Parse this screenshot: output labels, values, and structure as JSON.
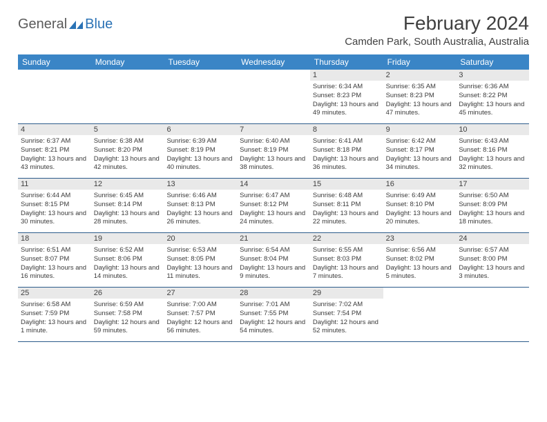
{
  "header": {
    "logo_general": "General",
    "logo_blue": "Blue",
    "month_title": "February 2024",
    "location": "Camden Park, South Australia, Australia"
  },
  "colors": {
    "header_bg": "#3a85c6",
    "header_text": "#ffffff",
    "daynum_bg": "#e9e9e9",
    "row_border": "#2a5a8a",
    "text": "#404040",
    "logo_gray": "#5a5a5a",
    "logo_blue": "#2a72b5"
  },
  "day_labels": [
    "Sunday",
    "Monday",
    "Tuesday",
    "Wednesday",
    "Thursday",
    "Friday",
    "Saturday"
  ],
  "weeks": [
    [
      {
        "n": "",
        "sr": "",
        "ss": "",
        "dl": ""
      },
      {
        "n": "",
        "sr": "",
        "ss": "",
        "dl": ""
      },
      {
        "n": "",
        "sr": "",
        "ss": "",
        "dl": ""
      },
      {
        "n": "",
        "sr": "",
        "ss": "",
        "dl": ""
      },
      {
        "n": "1",
        "sr": "Sunrise: 6:34 AM",
        "ss": "Sunset: 8:23 PM",
        "dl": "Daylight: 13 hours and 49 minutes."
      },
      {
        "n": "2",
        "sr": "Sunrise: 6:35 AM",
        "ss": "Sunset: 8:23 PM",
        "dl": "Daylight: 13 hours and 47 minutes."
      },
      {
        "n": "3",
        "sr": "Sunrise: 6:36 AM",
        "ss": "Sunset: 8:22 PM",
        "dl": "Daylight: 13 hours and 45 minutes."
      }
    ],
    [
      {
        "n": "4",
        "sr": "Sunrise: 6:37 AM",
        "ss": "Sunset: 8:21 PM",
        "dl": "Daylight: 13 hours and 43 minutes."
      },
      {
        "n": "5",
        "sr": "Sunrise: 6:38 AM",
        "ss": "Sunset: 8:20 PM",
        "dl": "Daylight: 13 hours and 42 minutes."
      },
      {
        "n": "6",
        "sr": "Sunrise: 6:39 AM",
        "ss": "Sunset: 8:19 PM",
        "dl": "Daylight: 13 hours and 40 minutes."
      },
      {
        "n": "7",
        "sr": "Sunrise: 6:40 AM",
        "ss": "Sunset: 8:19 PM",
        "dl": "Daylight: 13 hours and 38 minutes."
      },
      {
        "n": "8",
        "sr": "Sunrise: 6:41 AM",
        "ss": "Sunset: 8:18 PM",
        "dl": "Daylight: 13 hours and 36 minutes."
      },
      {
        "n": "9",
        "sr": "Sunrise: 6:42 AM",
        "ss": "Sunset: 8:17 PM",
        "dl": "Daylight: 13 hours and 34 minutes."
      },
      {
        "n": "10",
        "sr": "Sunrise: 6:43 AM",
        "ss": "Sunset: 8:16 PM",
        "dl": "Daylight: 13 hours and 32 minutes."
      }
    ],
    [
      {
        "n": "11",
        "sr": "Sunrise: 6:44 AM",
        "ss": "Sunset: 8:15 PM",
        "dl": "Daylight: 13 hours and 30 minutes."
      },
      {
        "n": "12",
        "sr": "Sunrise: 6:45 AM",
        "ss": "Sunset: 8:14 PM",
        "dl": "Daylight: 13 hours and 28 minutes."
      },
      {
        "n": "13",
        "sr": "Sunrise: 6:46 AM",
        "ss": "Sunset: 8:13 PM",
        "dl": "Daylight: 13 hours and 26 minutes."
      },
      {
        "n": "14",
        "sr": "Sunrise: 6:47 AM",
        "ss": "Sunset: 8:12 PM",
        "dl": "Daylight: 13 hours and 24 minutes."
      },
      {
        "n": "15",
        "sr": "Sunrise: 6:48 AM",
        "ss": "Sunset: 8:11 PM",
        "dl": "Daylight: 13 hours and 22 minutes."
      },
      {
        "n": "16",
        "sr": "Sunrise: 6:49 AM",
        "ss": "Sunset: 8:10 PM",
        "dl": "Daylight: 13 hours and 20 minutes."
      },
      {
        "n": "17",
        "sr": "Sunrise: 6:50 AM",
        "ss": "Sunset: 8:09 PM",
        "dl": "Daylight: 13 hours and 18 minutes."
      }
    ],
    [
      {
        "n": "18",
        "sr": "Sunrise: 6:51 AM",
        "ss": "Sunset: 8:07 PM",
        "dl": "Daylight: 13 hours and 16 minutes."
      },
      {
        "n": "19",
        "sr": "Sunrise: 6:52 AM",
        "ss": "Sunset: 8:06 PM",
        "dl": "Daylight: 13 hours and 14 minutes."
      },
      {
        "n": "20",
        "sr": "Sunrise: 6:53 AM",
        "ss": "Sunset: 8:05 PM",
        "dl": "Daylight: 13 hours and 11 minutes."
      },
      {
        "n": "21",
        "sr": "Sunrise: 6:54 AM",
        "ss": "Sunset: 8:04 PM",
        "dl": "Daylight: 13 hours and 9 minutes."
      },
      {
        "n": "22",
        "sr": "Sunrise: 6:55 AM",
        "ss": "Sunset: 8:03 PM",
        "dl": "Daylight: 13 hours and 7 minutes."
      },
      {
        "n": "23",
        "sr": "Sunrise: 6:56 AM",
        "ss": "Sunset: 8:02 PM",
        "dl": "Daylight: 13 hours and 5 minutes."
      },
      {
        "n": "24",
        "sr": "Sunrise: 6:57 AM",
        "ss": "Sunset: 8:00 PM",
        "dl": "Daylight: 13 hours and 3 minutes."
      }
    ],
    [
      {
        "n": "25",
        "sr": "Sunrise: 6:58 AM",
        "ss": "Sunset: 7:59 PM",
        "dl": "Daylight: 13 hours and 1 minute."
      },
      {
        "n": "26",
        "sr": "Sunrise: 6:59 AM",
        "ss": "Sunset: 7:58 PM",
        "dl": "Daylight: 12 hours and 59 minutes."
      },
      {
        "n": "27",
        "sr": "Sunrise: 7:00 AM",
        "ss": "Sunset: 7:57 PM",
        "dl": "Daylight: 12 hours and 56 minutes."
      },
      {
        "n": "28",
        "sr": "Sunrise: 7:01 AM",
        "ss": "Sunset: 7:55 PM",
        "dl": "Daylight: 12 hours and 54 minutes."
      },
      {
        "n": "29",
        "sr": "Sunrise: 7:02 AM",
        "ss": "Sunset: 7:54 PM",
        "dl": "Daylight: 12 hours and 52 minutes."
      },
      {
        "n": "",
        "sr": "",
        "ss": "",
        "dl": ""
      },
      {
        "n": "",
        "sr": "",
        "ss": "",
        "dl": ""
      }
    ]
  ]
}
